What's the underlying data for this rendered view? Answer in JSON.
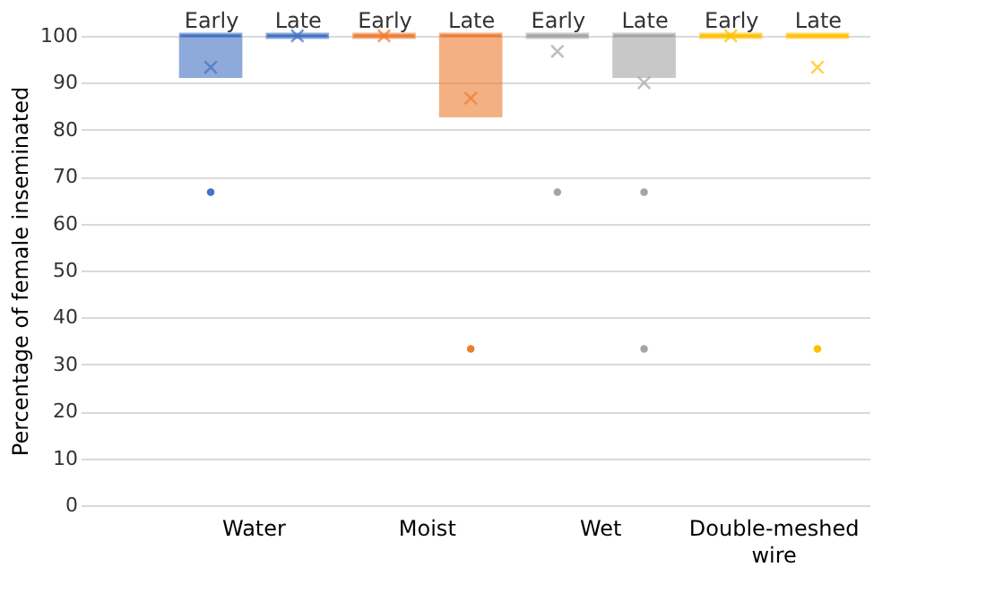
{
  "chart_data": {
    "type": "box",
    "categories": [
      "Early",
      "Late",
      "Early",
      "Late",
      "Early",
      "Late",
      "Early",
      "Late"
    ],
    "colors": [
      "#4472c4",
      "#4472c4",
      "#ed7d31",
      "#ed7d31",
      "#a5a5a5",
      "#a5a5a5",
      "#ffc000",
      "#ffc000"
    ],
    "boxes": [
      {
        "low": 91.7,
        "q1": 91.7,
        "median": 100,
        "q3": 100,
        "high": 100,
        "mean": 93.3,
        "outliers": [
          66.7
        ]
      },
      {
        "low": 100,
        "q1": 100,
        "median": 100,
        "q3": 100,
        "high": 100,
        "mean": 100
      },
      {
        "low": 100,
        "q1": 100,
        "median": 100,
        "q3": 100,
        "high": 100,
        "mean": 100
      },
      {
        "low": 83.3,
        "q1": 83.3,
        "median": 100,
        "q3": 100,
        "high": 100,
        "mean": 86.7,
        "outliers": [
          33.3
        ]
      },
      {
        "low": 100,
        "q1": 100,
        "median": 100,
        "q3": 100,
        "high": 100,
        "mean": 96.7,
        "outliers": [
          66.7
        ]
      },
      {
        "low": 91.7,
        "q1": 91.7,
        "median": 100,
        "q3": 100,
        "high": 100,
        "mean": 90,
        "outliers": [
          66.7,
          33.3
        ]
      },
      {
        "low": 100,
        "q1": 100,
        "median": 100,
        "q3": 100,
        "high": 100,
        "mean": 100
      },
      {
        "low": 100,
        "q1": 100,
        "median": 100,
        "q3": 100,
        "high": 100,
        "mean": 93.3,
        "outliers": [
          33.3
        ]
      }
    ],
    "annotations": [
      "Water",
      "Moist",
      "Wet",
      "Double-meshed wire"
    ],
    "ylabel": "Percentage of female inseminated",
    "ylim": [
      0,
      100
    ],
    "yticks": [
      0,
      10,
      20,
      30,
      40,
      50,
      60,
      70,
      80,
      90,
      100
    ],
    "grid": "y",
    "legend": false
  }
}
